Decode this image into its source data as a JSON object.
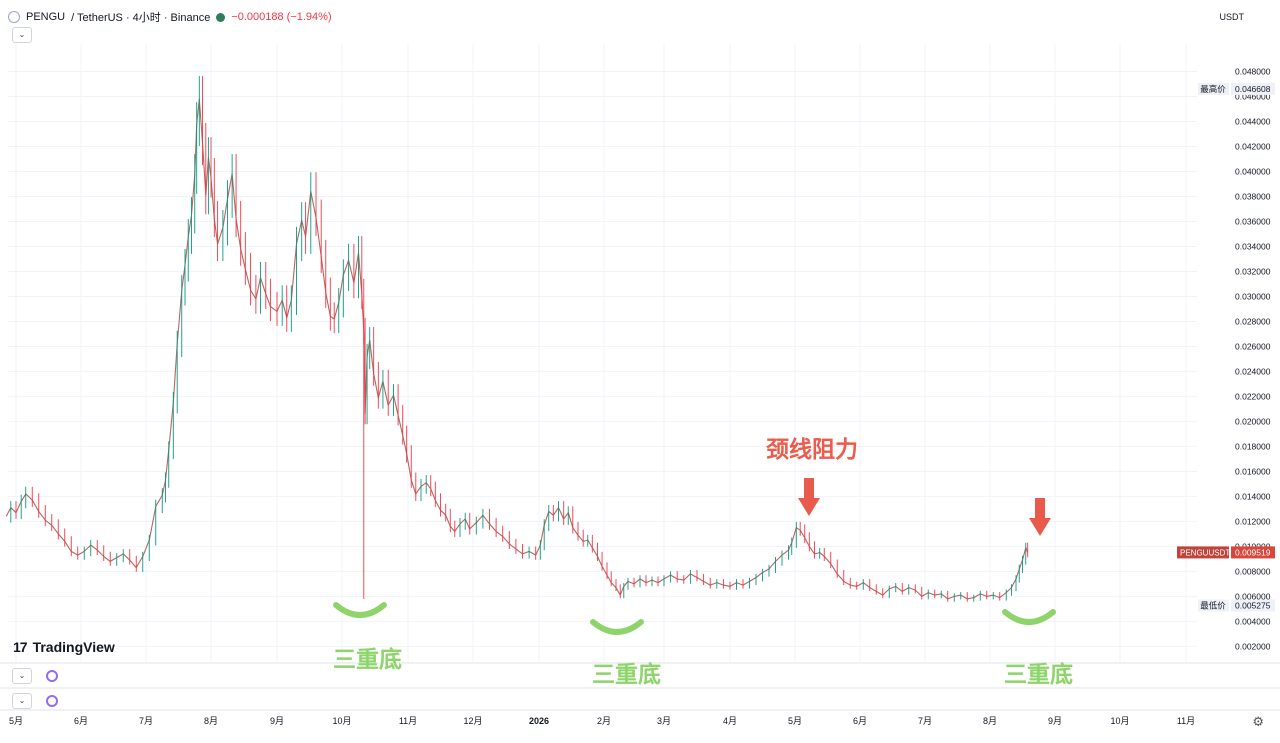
{
  "header": {
    "symbol": "PENGU",
    "pair": "/ TetherUS · 4小时 · Binance",
    "change": "−0.000188 (−1.94%)",
    "currency": "USDT"
  },
  "watermark": "TradingView",
  "annotations": {
    "resistance": "颈线阻力",
    "triple_bottom": "三重底"
  },
  "chart_data": {
    "type": "line",
    "title": "",
    "xlabel": "",
    "ylabel": "",
    "ylim": [
      0.00075,
      0.0502
    ],
    "x_ticks": [
      "5月",
      "6月",
      "7月",
      "8月",
      "9月",
      "10月",
      "11月",
      "12月",
      "2026",
      "2月",
      "3月",
      "4月",
      "5月",
      "6月",
      "7月",
      "8月",
      "9月",
      "10月",
      "11月"
    ],
    "y_ticks": [
      "0.048000",
      "0.046000",
      "0.044000",
      "0.042000",
      "0.040000",
      "0.038000",
      "0.036000",
      "0.034000",
      "0.032000",
      "0.030000",
      "0.028000",
      "0.026000",
      "0.024000",
      "0.022000",
      "0.020000",
      "0.018000",
      "0.016000",
      "0.014000",
      "0.012000",
      "0.010000",
      "0.008000",
      "0.006000",
      "0.004000",
      "0.002000"
    ],
    "high_label": "最高价",
    "high_value": "0.046608",
    "low_label": "最低价",
    "low_value": "0.005275",
    "last_label": "PENGUUSDT",
    "last_value": "0.009519",
    "up_color": "#089981",
    "down_color": "#f23645",
    "series": [
      {
        "values": [
          [
            4.85,
            0.0124
          ],
          [
            4.92,
            0.0131
          ],
          [
            5.0,
            0.0127
          ],
          [
            5.08,
            0.0136
          ],
          [
            5.15,
            0.0142
          ],
          [
            5.25,
            0.0137
          ],
          [
            5.35,
            0.0128
          ],
          [
            5.45,
            0.0121
          ],
          [
            5.55,
            0.0117
          ],
          [
            5.65,
            0.011
          ],
          [
            5.75,
            0.0104
          ],
          [
            5.85,
            0.0096
          ],
          [
            5.95,
            0.0093
          ],
          [
            6.05,
            0.0096
          ],
          [
            6.15,
            0.0101
          ],
          [
            6.25,
            0.0097
          ],
          [
            6.35,
            0.0092
          ],
          [
            6.45,
            0.0088
          ],
          [
            6.55,
            0.0091
          ],
          [
            6.65,
            0.0094
          ],
          [
            6.75,
            0.0089
          ],
          [
            6.85,
            0.0083
          ],
          [
            6.95,
            0.0092
          ],
          [
            7.05,
            0.0105
          ],
          [
            7.15,
            0.0132
          ],
          [
            7.25,
            0.0141
          ],
          [
            7.3,
            0.0153
          ],
          [
            7.35,
            0.0177
          ],
          [
            7.42,
            0.0215
          ],
          [
            7.48,
            0.0262
          ],
          [
            7.55,
            0.0305
          ],
          [
            7.6,
            0.0325
          ],
          [
            7.65,
            0.0348
          ],
          [
            7.7,
            0.0365
          ],
          [
            7.75,
            0.0398
          ],
          [
            7.78,
            0.0438
          ],
          [
            7.82,
            0.0458
          ],
          [
            7.87,
            0.0422
          ],
          [
            7.92,
            0.0381
          ],
          [
            7.96,
            0.0411
          ],
          [
            8.0,
            0.0395
          ],
          [
            8.05,
            0.0362
          ],
          [
            8.1,
            0.0342
          ],
          [
            8.18,
            0.0355
          ],
          [
            8.25,
            0.0378
          ],
          [
            8.32,
            0.0398
          ],
          [
            8.38,
            0.0362
          ],
          [
            8.45,
            0.0338
          ],
          [
            8.52,
            0.0322
          ],
          [
            8.6,
            0.0305
          ],
          [
            8.68,
            0.0298
          ],
          [
            8.75,
            0.0315
          ],
          [
            8.83,
            0.0302
          ],
          [
            8.9,
            0.0292
          ],
          [
            9.0,
            0.0288
          ],
          [
            9.08,
            0.0297
          ],
          [
            9.15,
            0.0283
          ],
          [
            9.22,
            0.0297
          ],
          [
            9.3,
            0.0342
          ],
          [
            9.38,
            0.0361
          ],
          [
            9.44,
            0.0348
          ],
          [
            9.52,
            0.0384
          ],
          [
            9.6,
            0.0363
          ],
          [
            9.68,
            0.0332
          ],
          [
            9.75,
            0.0303
          ],
          [
            9.82,
            0.0284
          ],
          [
            9.88,
            0.0282
          ],
          [
            9.95,
            0.0295
          ],
          [
            10.02,
            0.0317
          ],
          [
            10.1,
            0.0329
          ],
          [
            10.18,
            0.0311
          ],
          [
            10.25,
            0.0335
          ],
          [
            10.3,
            0.0302
          ],
          [
            10.33,
            0.0272
          ],
          [
            10.35,
            0.0206
          ],
          [
            10.38,
            0.0252
          ],
          [
            10.42,
            0.0265
          ],
          [
            10.48,
            0.0238
          ],
          [
            10.55,
            0.0219
          ],
          [
            10.62,
            0.0232
          ],
          [
            10.7,
            0.0213
          ],
          [
            10.78,
            0.0221
          ],
          [
            10.85,
            0.0205
          ],
          [
            10.92,
            0.0189
          ],
          [
            10.98,
            0.0174
          ],
          [
            11.05,
            0.0153
          ],
          [
            11.12,
            0.0142
          ],
          [
            11.2,
            0.0148
          ],
          [
            11.28,
            0.0151
          ],
          [
            11.35,
            0.0146
          ],
          [
            11.42,
            0.0137
          ],
          [
            11.5,
            0.0129
          ],
          [
            11.58,
            0.0125
          ],
          [
            11.65,
            0.0116
          ],
          [
            11.72,
            0.0112
          ],
          [
            11.8,
            0.0118
          ],
          [
            11.88,
            0.0122
          ],
          [
            11.95,
            0.0114
          ],
          [
            12.05,
            0.0119
          ],
          [
            12.15,
            0.0125
          ],
          [
            12.25,
            0.0118
          ],
          [
            12.35,
            0.0112
          ],
          [
            12.45,
            0.0108
          ],
          [
            12.55,
            0.0102
          ],
          [
            12.65,
            0.0098
          ],
          [
            12.75,
            0.0094
          ],
          [
            12.85,
            0.0096
          ],
          [
            12.95,
            0.0093
          ],
          [
            13.02,
            0.0101
          ],
          [
            13.08,
            0.0117
          ],
          [
            13.15,
            0.0128
          ],
          [
            13.22,
            0.0125
          ],
          [
            13.3,
            0.0131
          ],
          [
            13.38,
            0.0122
          ],
          [
            13.45,
            0.0127
          ],
          [
            13.52,
            0.0115
          ],
          [
            13.6,
            0.0109
          ],
          [
            13.68,
            0.0104
          ],
          [
            13.75,
            0.0105
          ],
          [
            13.82,
            0.0099
          ],
          [
            13.9,
            0.0092
          ],
          [
            13.97,
            0.0084
          ],
          [
            14.05,
            0.0077
          ],
          [
            14.12,
            0.0071
          ],
          [
            14.2,
            0.0067
          ],
          [
            14.27,
            0.0061
          ],
          [
            14.33,
            0.0068
          ],
          [
            14.4,
            0.0072
          ],
          [
            14.5,
            0.007
          ],
          [
            14.6,
            0.0074
          ],
          [
            14.7,
            0.0071
          ],
          [
            14.8,
            0.0073
          ],
          [
            14.9,
            0.0071
          ],
          [
            15.0,
            0.0074
          ],
          [
            15.1,
            0.0077
          ],
          [
            15.2,
            0.0074
          ],
          [
            15.3,
            0.0073
          ],
          [
            15.4,
            0.0078
          ],
          [
            15.5,
            0.0075
          ],
          [
            15.6,
            0.0072
          ],
          [
            15.7,
            0.0069
          ],
          [
            15.8,
            0.0071
          ],
          [
            15.9,
            0.0069
          ],
          [
            16.0,
            0.0068
          ],
          [
            16.1,
            0.0071
          ],
          [
            16.2,
            0.0069
          ],
          [
            16.3,
            0.0072
          ],
          [
            16.4,
            0.0075
          ],
          [
            16.5,
            0.0079
          ],
          [
            16.6,
            0.0082
          ],
          [
            16.7,
            0.0088
          ],
          [
            16.8,
            0.0093
          ],
          [
            16.9,
            0.0097
          ],
          [
            16.95,
            0.0103
          ],
          [
            17.02,
            0.0115
          ],
          [
            17.08,
            0.0113
          ],
          [
            17.15,
            0.0107
          ],
          [
            17.22,
            0.01
          ],
          [
            17.3,
            0.0094
          ],
          [
            17.38,
            0.0095
          ],
          [
            17.45,
            0.0092
          ],
          [
            17.55,
            0.0086
          ],
          [
            17.65,
            0.0078
          ],
          [
            17.75,
            0.0072
          ],
          [
            17.85,
            0.0069
          ],
          [
            17.95,
            0.0068
          ],
          [
            18.05,
            0.0071
          ],
          [
            18.15,
            0.0067
          ],
          [
            18.25,
            0.0064
          ],
          [
            18.35,
            0.0061
          ],
          [
            18.45,
            0.0066
          ],
          [
            18.55,
            0.0068
          ],
          [
            18.65,
            0.0064
          ],
          [
            18.75,
            0.0067
          ],
          [
            18.85,
            0.0065
          ],
          [
            18.95,
            0.006
          ],
          [
            19.05,
            0.0063
          ],
          [
            19.15,
            0.0061
          ],
          [
            19.25,
            0.0062
          ],
          [
            19.35,
            0.0058
          ],
          [
            19.45,
            0.006
          ],
          [
            19.55,
            0.0061
          ],
          [
            19.65,
            0.0058
          ],
          [
            19.75,
            0.0059
          ],
          [
            19.85,
            0.0062
          ],
          [
            19.95,
            0.006
          ],
          [
            20.05,
            0.0061
          ],
          [
            20.15,
            0.0059
          ],
          [
            20.25,
            0.0063
          ],
          [
            20.33,
            0.0067
          ],
          [
            20.4,
            0.0074
          ],
          [
            20.45,
            0.0082
          ],
          [
            20.5,
            0.0089
          ],
          [
            20.55,
            0.0099
          ],
          [
            20.58,
            0.0095
          ]
        ]
      }
    ]
  }
}
